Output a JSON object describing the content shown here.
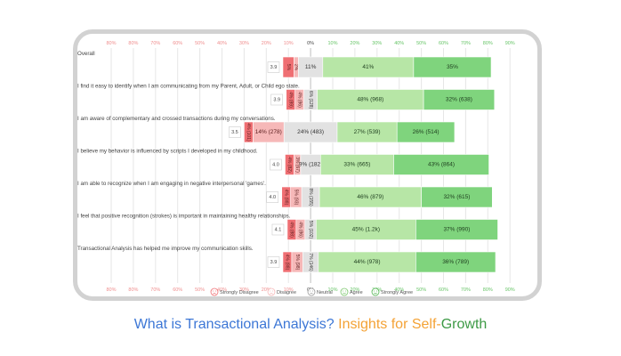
{
  "chart_data": {
    "type": "bar",
    "stacked": true,
    "orientation": "horizontal",
    "diverging": true,
    "x_ticks": [
      "80%",
      "80%",
      "70%",
      "60%",
      "50%",
      "40%",
      "30%",
      "20%",
      "10%",
      "0%",
      "10%",
      "20%",
      "30%",
      "40%",
      "50%",
      "60%",
      "70%",
      "80%",
      "90%"
    ],
    "legend": {
      "placement": "bottom",
      "entries": [
        "Strongly Disagree",
        "Disagree",
        "Neutral",
        "Agree",
        "Strongly Agree"
      ]
    },
    "colors": {
      "strongly_disagree": "#ef6f73",
      "disagree": "#f6b8b8",
      "neutral": "#e2e2e2",
      "agree": "#b7e6a6",
      "strongly_agree": "#7fd47d",
      "negative_tick": "#ef8e8e",
      "positive_tick": "#67c467",
      "zero_tick": "#444444"
    },
    "rows": [
      {
        "title": "Overall",
        "mean": "3.9",
        "values": [
          5,
          2,
          11,
          41,
          35
        ],
        "labels": [
          "5%",
          "2%",
          "11%",
          "41%",
          "35%"
        ]
      },
      {
        "title": "I find it easy to identify when I am communicating from my Parent, Adult, or Child ego state.",
        "mean": "3.9",
        "values": [
          4,
          4,
          6,
          48,
          32
        ],
        "labels": [
          "4% (89)",
          "4% (86)",
          "6% (128)",
          "48% (968)",
          "32% (638)"
        ]
      },
      {
        "title": "I am aware of complementary and crossed transactions during my conversations.",
        "mean": "3.5",
        "values": [
          4,
          14,
          24,
          27,
          26
        ],
        "labels": [
          "4% (101)",
          "14% (278)",
          "24% (483)",
          "27% (539)",
          "26% (514)"
        ]
      },
      {
        "title": "I believe my behavior is influenced by scripts I developed in my childhood.",
        "mean": "4.0",
        "values": [
          4,
          3,
          9,
          33,
          43
        ],
        "labels": [
          "4% (82)",
          "3% (67)",
          "9% (182)",
          "33% (665)",
          "43% (864)"
        ]
      },
      {
        "title": "I am able to recognize when I am engaging in negative interpersonal 'games'.",
        "mean": "4.0",
        "values": [
          4,
          5,
          8,
          46,
          32
        ],
        "labels": [
          "4% (88)",
          "5% (93)",
          "8% (155)",
          "46% (879)",
          "32% (615)"
        ]
      },
      {
        "title": "I feel that positive recognition (strokes) is important in maintaining healthy relationships.",
        "mean": "4.1",
        "values": [
          4,
          4,
          5,
          45,
          37
        ],
        "labels": [
          "4% (88)",
          "4% (86)",
          "5% (102)",
          "45% (1.2k)",
          "37% (990)"
        ]
      },
      {
        "title": "Transactional Analysis has helped me improve my communication skills.",
        "mean": "3.9",
        "values": [
          4,
          5,
          7,
          44,
          36
        ],
        "labels": [
          "4% (88)",
          "5% (98)",
          "7% (146)",
          "44% (978)",
          "36% (789)"
        ]
      }
    ]
  },
  "caption": {
    "part1": "What is Transactional Analysis?",
    "part2": " Insights for Self-",
    "part3": "Growth"
  }
}
